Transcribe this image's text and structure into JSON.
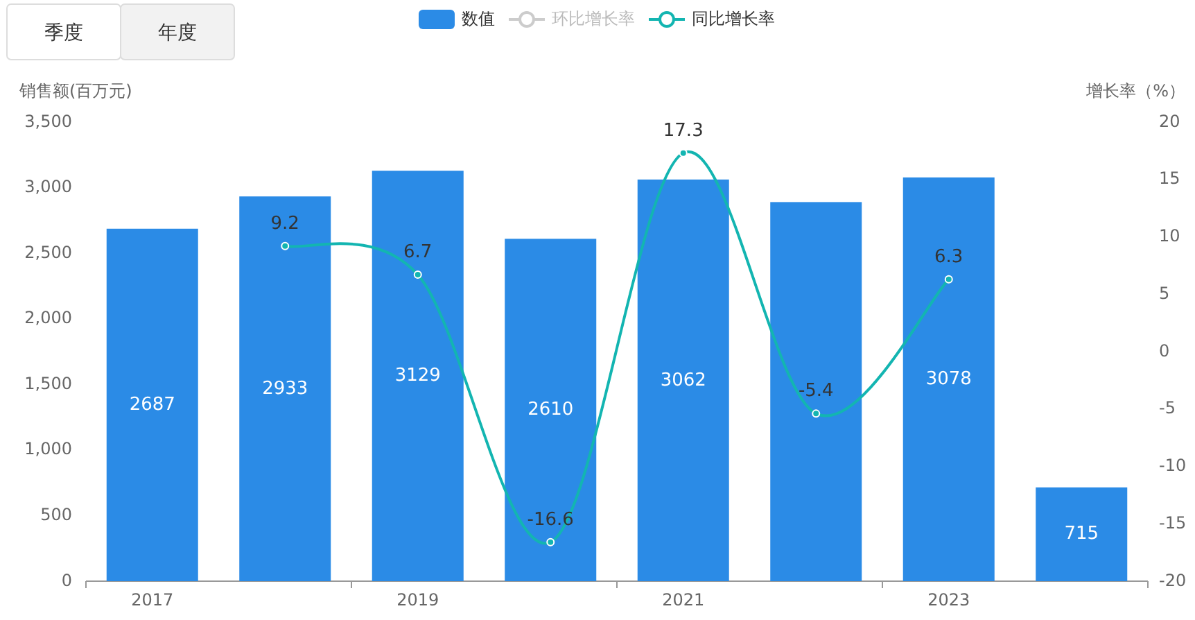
{
  "chart_data": {
    "type": "bar",
    "categories": [
      "2017",
      null,
      "2019",
      null,
      "2021",
      null,
      "2023",
      null
    ],
    "series": [
      {
        "name": "数值",
        "color": "#2b8be6",
        "values": [
          2687,
          2933,
          3129,
          2610,
          3062,
          2890,
          3078,
          715
        ],
        "value_labels": [
          "2687",
          "2933",
          "3129",
          "2610",
          "3062",
          null,
          "3078",
          "715"
        ]
      },
      {
        "name": "环比增长率",
        "type": "line",
        "axis": "y2",
        "color": "#cccccc",
        "values": [
          null,
          null,
          null,
          null,
          null,
          null,
          null,
          null
        ]
      },
      {
        "name": "同比增长率",
        "type": "line",
        "axis": "y2",
        "color": "#13b5b1",
        "values": [
          null,
          9.2,
          6.7,
          -16.6,
          17.3,
          -5.4,
          6.3,
          null
        ],
        "value_labels": [
          null,
          "9.2",
          "6.7",
          "-16.6",
          "17.3",
          "-5.4",
          "6.3",
          null
        ]
      }
    ],
    "ylabel": "销售额(百万元)",
    "y2label": "增长率（%）",
    "ylim": [
      0,
      3500
    ],
    "yticks": [
      0,
      {
        "value": 500,
        "label": "500"
      },
      {
        "value": 1000,
        "label": "1,000"
      },
      {
        "value": 1500,
        "label": "1,500"
      },
      {
        "value": 2000,
        "label": "2,000"
      },
      {
        "value": 2500,
        "label": "2,500"
      },
      {
        "value": 3000,
        "label": "3,000"
      },
      {
        "value": 3500,
        "label": "3,500"
      }
    ],
    "y2lim": [
      -20,
      20
    ],
    "y2ticks": [
      -20,
      -15,
      -10,
      -5,
      0,
      5,
      10,
      15,
      20
    ],
    "legend": "top",
    "marker": "circle",
    "annotations": [
      "季度",
      "年度"
    ]
  }
}
